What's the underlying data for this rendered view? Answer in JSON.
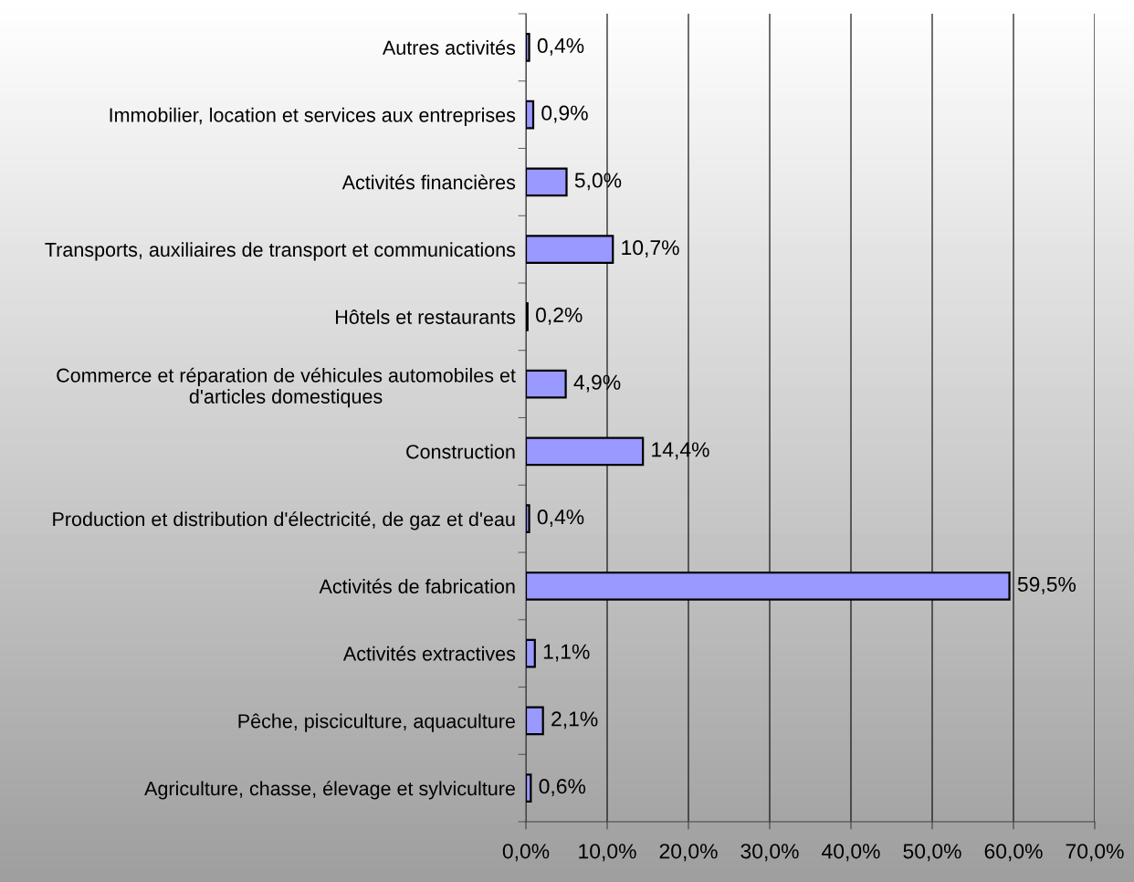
{
  "chart_data": {
    "type": "bar",
    "orientation": "horizontal",
    "categories": [
      "Autres activités",
      "Immobilier, location et services aux entreprises",
      "Activités financières",
      "Transports, auxiliaires de transport et communications",
      "Hôtels et restaurants",
      "Commerce et réparation de véhicules automobiles et\nd'articles domestiques",
      "Construction",
      "Production et distribution d'électricité, de gaz et d'eau",
      "Activités de fabrication",
      "Activités extractives",
      "Pêche, pisciculture, aquaculture",
      "Agriculture, chasse, élevage et sylviculture"
    ],
    "values": [
      0.4,
      0.9,
      5.0,
      10.7,
      0.2,
      4.9,
      14.4,
      0.4,
      59.5,
      1.1,
      2.1,
      0.6
    ],
    "value_labels": [
      "0,4%",
      "0,9%",
      "5,0%",
      "10,7%",
      "0,2%",
      "4,9%",
      "14,4%",
      "0,4%",
      "59,5%",
      "1,1%",
      "2,1%",
      "0,6%"
    ],
    "color": "#9999ff",
    "xlim": [
      0,
      70
    ],
    "xticks": [
      {
        "value": 0,
        "label": "0,0%"
      },
      {
        "value": 10,
        "label": "10,0%"
      },
      {
        "value": 20,
        "label": "20,0%"
      },
      {
        "value": 30,
        "label": "30,0%"
      },
      {
        "value": 40,
        "label": "40,0%"
      },
      {
        "value": 50,
        "label": "50,0%"
      },
      {
        "value": 60,
        "label": "60,0%"
      },
      {
        "value": 70,
        "label": "70,0%"
      }
    ],
    "grid": "x"
  }
}
